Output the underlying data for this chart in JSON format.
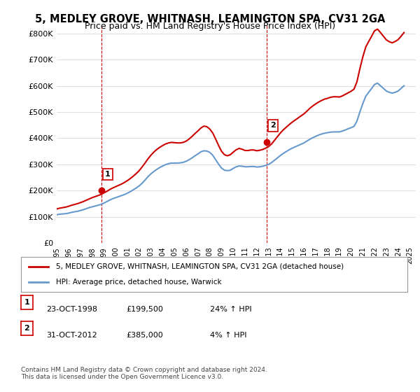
{
  "title_line1": "5, MEDLEY GROVE, WHITNASH, LEAMINGTON SPA, CV31 2GA",
  "title_line2": "Price paid vs. HM Land Registry's House Price Index (HPI)",
  "ylabel_ticks": [
    "£0",
    "£100K",
    "£200K",
    "£300K",
    "£400K",
    "£500K",
    "£600K",
    "£700K",
    "£800K"
  ],
  "ytick_values": [
    0,
    100000,
    200000,
    300000,
    400000,
    500000,
    600000,
    700000,
    800000
  ],
  "ylim": [
    0,
    830000
  ],
  "xlim_start": 1995.0,
  "xlim_end": 2025.5,
  "background_color": "#ffffff",
  "plot_bg_color": "#ffffff",
  "grid_color": "#e0e0e0",
  "sale1_date": 1998.81,
  "sale1_price": 199500,
  "sale1_label": "1",
  "sale2_date": 2012.83,
  "sale2_price": 385000,
  "sale2_label": "2",
  "red_line_color": "#cc0000",
  "blue_line_color": "#6699cc",
  "vline_color": "#cc0000",
  "marker_color": "#cc0000",
  "legend_red_label": "5, MEDLEY GROVE, WHITNASH, LEAMINGTON SPA, CV31 2GA (detached house)",
  "legend_blue_label": "HPI: Average price, detached house, Warwick",
  "annot1_num": "1",
  "annot1_date": "23-OCT-1998",
  "annot1_price": "£199,500",
  "annot1_hpi": "24% ↑ HPI",
  "annot2_num": "2",
  "annot2_date": "31-OCT-2012",
  "annot2_price": "£385,000",
  "annot2_hpi": "4% ↑ HPI",
  "footer": "Contains HM Land Registry data © Crown copyright and database right 2024.\nThis data is licensed under the Open Government Licence v3.0.",
  "xtick_years": [
    1995,
    1996,
    1997,
    1998,
    1999,
    2000,
    2001,
    2002,
    2003,
    2004,
    2005,
    2006,
    2007,
    2008,
    2009,
    2010,
    2011,
    2012,
    2013,
    2014,
    2015,
    2016,
    2017,
    2018,
    2019,
    2020,
    2021,
    2022,
    2023,
    2024,
    2025
  ],
  "hpi_x": [
    1995.0,
    1995.25,
    1995.5,
    1995.75,
    1996.0,
    1996.25,
    1996.5,
    1996.75,
    1997.0,
    1997.25,
    1997.5,
    1997.75,
    1998.0,
    1998.25,
    1998.5,
    1998.75,
    1999.0,
    1999.25,
    1999.5,
    1999.75,
    2000.0,
    2000.25,
    2000.5,
    2000.75,
    2001.0,
    2001.25,
    2001.5,
    2001.75,
    2002.0,
    2002.25,
    2002.5,
    2002.75,
    2003.0,
    2003.25,
    2003.5,
    2003.75,
    2004.0,
    2004.25,
    2004.5,
    2004.75,
    2005.0,
    2005.25,
    2005.5,
    2005.75,
    2006.0,
    2006.25,
    2006.5,
    2006.75,
    2007.0,
    2007.25,
    2007.5,
    2007.75,
    2008.0,
    2008.25,
    2008.5,
    2008.75,
    2009.0,
    2009.25,
    2009.5,
    2009.75,
    2010.0,
    2010.25,
    2010.5,
    2010.75,
    2011.0,
    2011.25,
    2011.5,
    2011.75,
    2012.0,
    2012.25,
    2012.5,
    2012.75,
    2013.0,
    2013.25,
    2013.5,
    2013.75,
    2014.0,
    2014.25,
    2014.5,
    2014.75,
    2015.0,
    2015.25,
    2015.5,
    2015.75,
    2016.0,
    2016.25,
    2016.5,
    2016.75,
    2017.0,
    2017.25,
    2017.5,
    2017.75,
    2018.0,
    2018.25,
    2018.5,
    2018.75,
    2019.0,
    2019.25,
    2019.5,
    2019.75,
    2020.0,
    2020.25,
    2020.5,
    2020.75,
    2021.0,
    2021.25,
    2021.5,
    2021.75,
    2022.0,
    2022.25,
    2022.5,
    2022.75,
    2023.0,
    2023.25,
    2023.5,
    2023.75,
    2024.0,
    2024.25,
    2024.5
  ],
  "hpi_y": [
    108000,
    110000,
    111000,
    112000,
    114000,
    117000,
    119000,
    121000,
    124000,
    127000,
    131000,
    135000,
    138000,
    141000,
    144000,
    147000,
    152000,
    158000,
    164000,
    169000,
    173000,
    177000,
    181000,
    185000,
    190000,
    196000,
    203000,
    210000,
    218000,
    228000,
    240000,
    253000,
    264000,
    273000,
    281000,
    288000,
    294000,
    299000,
    303000,
    305000,
    305000,
    305000,
    306000,
    308000,
    312000,
    318000,
    325000,
    333000,
    340000,
    348000,
    352000,
    351000,
    346000,
    335000,
    318000,
    301000,
    286000,
    278000,
    276000,
    278000,
    285000,
    291000,
    294000,
    293000,
    291000,
    291000,
    292000,
    292000,
    290000,
    291000,
    293000,
    296000,
    300000,
    307000,
    316000,
    325000,
    334000,
    342000,
    349000,
    356000,
    362000,
    367000,
    372000,
    377000,
    382000,
    389000,
    396000,
    402000,
    407000,
    412000,
    416000,
    419000,
    421000,
    423000,
    424000,
    424000,
    424000,
    427000,
    431000,
    436000,
    440000,
    445000,
    465000,
    500000,
    532000,
    560000,
    575000,
    590000,
    605000,
    610000,
    600000,
    590000,
    580000,
    575000,
    572000,
    575000,
    580000,
    590000,
    600000
  ],
  "red_x": [
    1995.0,
    1995.25,
    1995.5,
    1995.75,
    1996.0,
    1996.25,
    1996.5,
    1996.75,
    1997.0,
    1997.25,
    1997.5,
    1997.75,
    1998.0,
    1998.25,
    1998.5,
    1998.75,
    1999.0,
    1999.25,
    1999.5,
    1999.75,
    2000.0,
    2000.25,
    2000.5,
    2000.75,
    2001.0,
    2001.25,
    2001.5,
    2001.75,
    2002.0,
    2002.25,
    2002.5,
    2002.75,
    2003.0,
    2003.25,
    2003.5,
    2003.75,
    2004.0,
    2004.25,
    2004.5,
    2004.75,
    2005.0,
    2005.25,
    2005.5,
    2005.75,
    2006.0,
    2006.25,
    2006.5,
    2006.75,
    2007.0,
    2007.25,
    2007.5,
    2007.75,
    2008.0,
    2008.25,
    2008.5,
    2008.75,
    2009.0,
    2009.25,
    2009.5,
    2009.75,
    2010.0,
    2010.25,
    2010.5,
    2010.75,
    2011.0,
    2011.25,
    2011.5,
    2011.75,
    2012.0,
    2012.25,
    2012.5,
    2012.75,
    2013.0,
    2013.25,
    2013.5,
    2013.75,
    2014.0,
    2014.25,
    2014.5,
    2014.75,
    2015.0,
    2015.25,
    2015.5,
    2015.75,
    2016.0,
    2016.25,
    2016.5,
    2016.75,
    2017.0,
    2017.25,
    2017.5,
    2017.75,
    2018.0,
    2018.25,
    2018.5,
    2018.75,
    2019.0,
    2019.25,
    2019.5,
    2019.75,
    2020.0,
    2020.25,
    2020.5,
    2020.75,
    2021.0,
    2021.25,
    2021.5,
    2021.75,
    2022.0,
    2022.25,
    2022.5,
    2022.75,
    2023.0,
    2023.25,
    2023.5,
    2023.75,
    2024.0,
    2024.25,
    2024.5
  ],
  "red_y": [
    130000,
    133000,
    135000,
    137000,
    140000,
    144000,
    147000,
    150000,
    154000,
    158000,
    163000,
    168000,
    173000,
    177000,
    181000,
    185000,
    191000,
    197000,
    204000,
    210000,
    215000,
    220000,
    225000,
    231000,
    238000,
    246000,
    255000,
    265000,
    276000,
    290000,
    305000,
    321000,
    335000,
    347000,
    357000,
    365000,
    372000,
    378000,
    382000,
    384000,
    383000,
    382000,
    382000,
    384000,
    389000,
    397000,
    407000,
    418000,
    428000,
    439000,
    446000,
    444000,
    435000,
    420000,
    397000,
    372000,
    350000,
    337000,
    333000,
    337000,
    347000,
    356000,
    361000,
    358000,
    353000,
    353000,
    355000,
    355000,
    352000,
    354000,
    357000,
    362000,
    368000,
    378000,
    392000,
    406000,
    420000,
    432000,
    442000,
    452000,
    461000,
    469000,
    477000,
    485000,
    493000,
    503000,
    514000,
    523000,
    531000,
    538000,
    544000,
    549000,
    552000,
    556000,
    558000,
    558000,
    557000,
    561000,
    567000,
    573000,
    579000,
    587000,
    615000,
    665000,
    710000,
    748000,
    769000,
    789000,
    810000,
    816000,
    803000,
    789000,
    775000,
    768000,
    764000,
    769000,
    776000,
    789000,
    803000
  ]
}
